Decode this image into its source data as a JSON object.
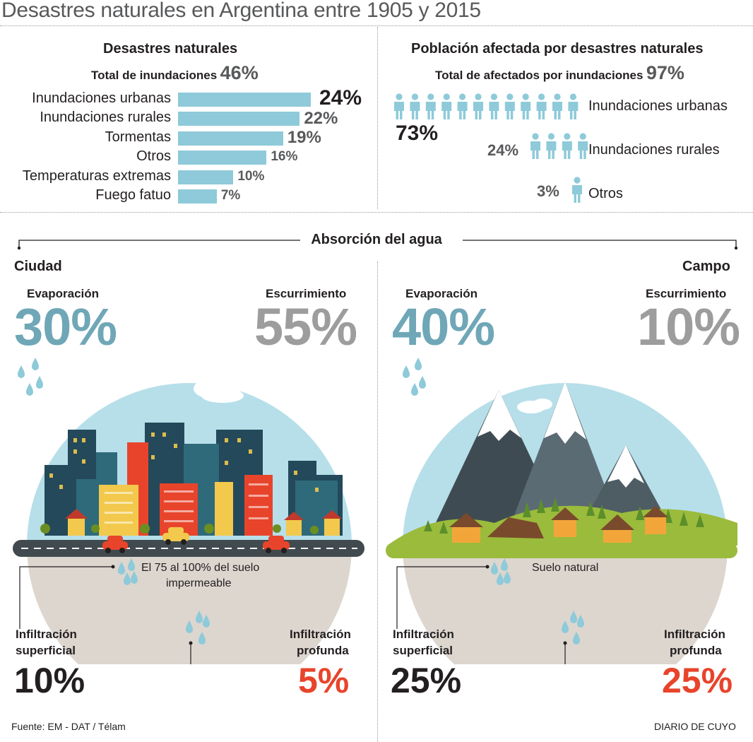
{
  "title": "Desastres naturales en Argentina entre 1905 y 2015",
  "chart_data": [
    {
      "type": "bar",
      "title": "Desastres naturales",
      "subtitle_label": "Total de inundaciones",
      "subtitle_value": "46%",
      "categories": [
        "Inundaciones urbanas",
        "Inundaciones rurales",
        "Tormentas",
        "Otros",
        "Temperaturas extremas",
        "Fuego fatuo"
      ],
      "values": [
        24,
        22,
        19,
        16,
        10,
        7
      ],
      "value_labels": [
        "24%",
        "22%",
        "19%",
        "16%",
        "10%",
        "7%"
      ],
      "color": "#8ecad9"
    },
    {
      "type": "pictograph",
      "title": "Población afectada por desastres naturales",
      "subtitle_label": "Total de afectados por inundaciones",
      "subtitle_value": "97%",
      "categories": [
        "Inundaciones urbanas",
        "Inundaciones rurales",
        "Otros"
      ],
      "values": [
        73,
        24,
        3
      ],
      "value_labels": [
        "73%",
        "24%",
        "3%"
      ],
      "icon": "person-icon",
      "color": "#8ecad9"
    }
  ],
  "absorcion": {
    "title": "Absorción del agua",
    "ciudad": {
      "label": "Ciudad",
      "evaporacion_label": "Evaporación",
      "evaporacion": "30%",
      "escurrimiento_label": "Escurrimiento",
      "escurrimiento": "55%",
      "suelo_note_1": "El 75 al 100% del suelo",
      "suelo_note_2": "impermeable",
      "inf_sup_label_1": "Infiltración",
      "inf_sup_label_2": "superficial",
      "inf_sup": "10%",
      "inf_prof_label_1": "Infiltración",
      "inf_prof_label_2": "profunda",
      "inf_prof": "5%"
    },
    "campo": {
      "label": "Campo",
      "evaporacion_label": "Evaporación",
      "evaporacion": "40%",
      "escurrimiento_label": "Escurrimiento",
      "escurrimiento": "10%",
      "suelo_note_1": "Suelo natural",
      "inf_sup_label_1": "Infiltración",
      "inf_sup_label_2": "superficial",
      "inf_sup": "25%",
      "inf_prof_label_1": "Infiltración",
      "inf_prof_label_2": "profunda",
      "inf_prof": "25%"
    }
  },
  "colors": {
    "bar": "#8ecad9",
    "evaporacion": "#6fa7b7",
    "escurrimiento": "#9d9d9d",
    "profunda": "#e8442b",
    "dark": "#231f20"
  },
  "footer": {
    "source": "Fuente: EM - DAT /  Télam",
    "brand": "DIARIO DE CUYO"
  }
}
